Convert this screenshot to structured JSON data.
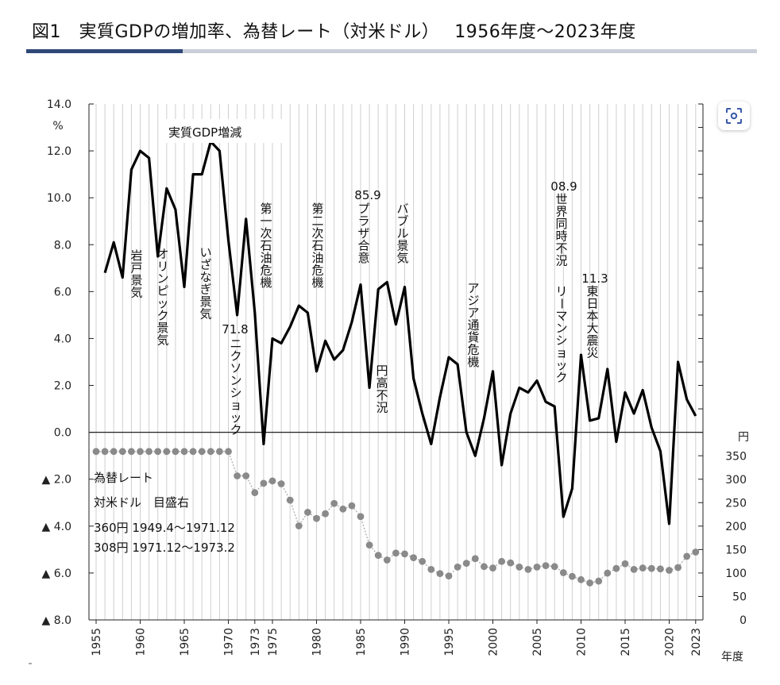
{
  "title": "図1　実質GDPの増加率、為替レート（対米ドル）　 1956年度～2023年度",
  "chart_data": {
    "type": "line",
    "left_axis": {
      "unit": "%",
      "ylim": [
        -8,
        14
      ],
      "ticks": [
        {
          "v": 14,
          "label": "14.0"
        },
        {
          "v": 12,
          "label": "12.0"
        },
        {
          "v": 10,
          "label": "10.0"
        },
        {
          "v": 8,
          "label": "8.0"
        },
        {
          "v": 6,
          "label": "6.0"
        },
        {
          "v": 4,
          "label": "4.0"
        },
        {
          "v": 2,
          "label": "2.0"
        },
        {
          "v": 0,
          "label": "0.0"
        },
        {
          "v": -2,
          "label": "▲ 2.0"
        },
        {
          "v": -4,
          "label": "▲ 4.0"
        },
        {
          "v": -6,
          "label": "▲ 6.0"
        },
        {
          "v": -8,
          "label": "▲ 8.0"
        }
      ]
    },
    "right_axis": {
      "unit": "円",
      "ylim": [
        0,
        350
      ],
      "ticks": [
        {
          "v": 350,
          "label": "350"
        },
        {
          "v": 300,
          "label": "300"
        },
        {
          "v": 250,
          "label": "250"
        },
        {
          "v": 200,
          "label": "200"
        },
        {
          "v": 150,
          "label": "150"
        },
        {
          "v": 100,
          "label": "100"
        },
        {
          "v": 50,
          "label": "50"
        },
        {
          "v": 0,
          "label": "0"
        }
      ]
    },
    "x_axis": {
      "unit": "年度",
      "xlim": [
        1955,
        2023
      ],
      "tick_labels": [
        "1955",
        "1960",
        "1965",
        "1970",
        "1973",
        "1975",
        "1980",
        "1985",
        "1990",
        "1995",
        "2000",
        "2005",
        "2010",
        "2015",
        "2020",
        "2023"
      ]
    },
    "grid": "vertical",
    "series": [
      {
        "name": "実質GDP増減",
        "axis": "left",
        "color": "#000000",
        "x": [
          1956,
          1957,
          1958,
          1959,
          1960,
          1961,
          1962,
          1963,
          1964,
          1965,
          1966,
          1967,
          1968,
          1969,
          1970,
          1971,
          1972,
          1973,
          1974,
          1975,
          1976,
          1977,
          1978,
          1979,
          1980,
          1981,
          1982,
          1983,
          1984,
          1985,
          1986,
          1987,
          1988,
          1989,
          1990,
          1991,
          1992,
          1993,
          1994,
          1995,
          1996,
          1997,
          1998,
          1999,
          2000,
          2001,
          2002,
          2003,
          2004,
          2005,
          2006,
          2007,
          2008,
          2009,
          2010,
          2011,
          2012,
          2013,
          2014,
          2015,
          2016,
          2017,
          2018,
          2019,
          2020,
          2021,
          2022,
          2023
        ],
        "y": [
          6.8,
          8.1,
          6.6,
          11.2,
          12.0,
          11.7,
          7.5,
          10.4,
          9.5,
          6.2,
          11.0,
          11.0,
          12.4,
          12.0,
          8.2,
          5.0,
          9.1,
          5.1,
          -0.5,
          4.0,
          3.8,
          4.5,
          5.4,
          5.1,
          2.6,
          3.9,
          3.1,
          3.5,
          4.7,
          6.3,
          1.9,
          6.1,
          6.4,
          4.6,
          6.2,
          2.3,
          0.8,
          -0.5,
          1.5,
          3.2,
          2.9,
          0.0,
          -1.0,
          0.6,
          2.6,
          -1.4,
          0.8,
          1.9,
          1.7,
          2.2,
          1.3,
          1.1,
          -3.6,
          -2.4,
          3.3,
          0.5,
          0.6,
          2.7,
          -0.4,
          1.7,
          0.8,
          1.8,
          0.2,
          -0.8,
          -3.9,
          3.0,
          1.4,
          0.7
        ]
      },
      {
        "name": "為替レート",
        "axis": "right",
        "color": "#8a8a8a",
        "x": [
          1955,
          1956,
          1957,
          1958,
          1959,
          1960,
          1961,
          1962,
          1963,
          1964,
          1965,
          1966,
          1967,
          1968,
          1969,
          1970,
          1971,
          1972,
          1973,
          1974,
          1975,
          1976,
          1977,
          1978,
          1979,
          1980,
          1981,
          1982,
          1983,
          1984,
          1985,
          1986,
          1987,
          1988,
          1989,
          1990,
          1991,
          1992,
          1993,
          1994,
          1995,
          1996,
          1997,
          1998,
          1999,
          2000,
          2001,
          2002,
          2003,
          2004,
          2005,
          2006,
          2007,
          2008,
          2009,
          2010,
          2011,
          2012,
          2013,
          2014,
          2015,
          2016,
          2017,
          2018,
          2019,
          2020,
          2021,
          2022,
          2023
        ],
        "y": [
          360,
          360,
          360,
          360,
          360,
          360,
          360,
          360,
          360,
          360,
          360,
          360,
          360,
          360,
          360,
          360,
          308,
          308,
          272,
          292,
          297,
          291,
          256,
          201,
          230,
          217,
          227,
          249,
          237,
          244,
          221,
          160,
          138,
          128,
          143,
          141,
          133,
          125,
          108,
          99,
          94,
          113,
          121,
          131,
          114,
          111,
          125,
          122,
          113,
          108,
          113,
          116,
          114,
          101,
          93,
          86,
          79,
          83,
          100,
          110,
          120,
          108,
          111,
          110,
          109,
          106,
          112,
          136,
          145
        ]
      }
    ],
    "annotations": [
      {
        "text": "実質GDP増減",
        "boxed": true
      },
      {
        "text": "為替レート"
      },
      {
        "text": "対米ドル　目盛右"
      },
      {
        "text": "360円 1949.4～1971.12"
      },
      {
        "text": "308円 1971.12～1973.2"
      },
      {
        "text": "岩戸景気",
        "vertical": true
      },
      {
        "text": "オリンピック景気",
        "vertical": true
      },
      {
        "text": "いざなぎ景気",
        "vertical": true
      },
      {
        "text": "71.8",
        "vertical": false
      },
      {
        "text": "ニクソンショック",
        "vertical": true
      },
      {
        "text": "第一次石油危機",
        "vertical": true
      },
      {
        "text": "第二次石油危機",
        "vertical": true
      },
      {
        "text": "85.9",
        "vertical": false
      },
      {
        "text": "プラザ合意",
        "vertical": true
      },
      {
        "text": "円高不況",
        "vertical": true
      },
      {
        "text": "バブル景気",
        "vertical": true
      },
      {
        "text": "アジア通貨危機",
        "vertical": true
      },
      {
        "text": "08.9",
        "vertical": false
      },
      {
        "text": "世界同時不況",
        "vertical": true
      },
      {
        "text": "リーマンショック",
        "vertical": true
      },
      {
        "text": "11.3",
        "vertical": false
      },
      {
        "text": "東日本大震災",
        "vertical": true
      }
    ]
  }
}
